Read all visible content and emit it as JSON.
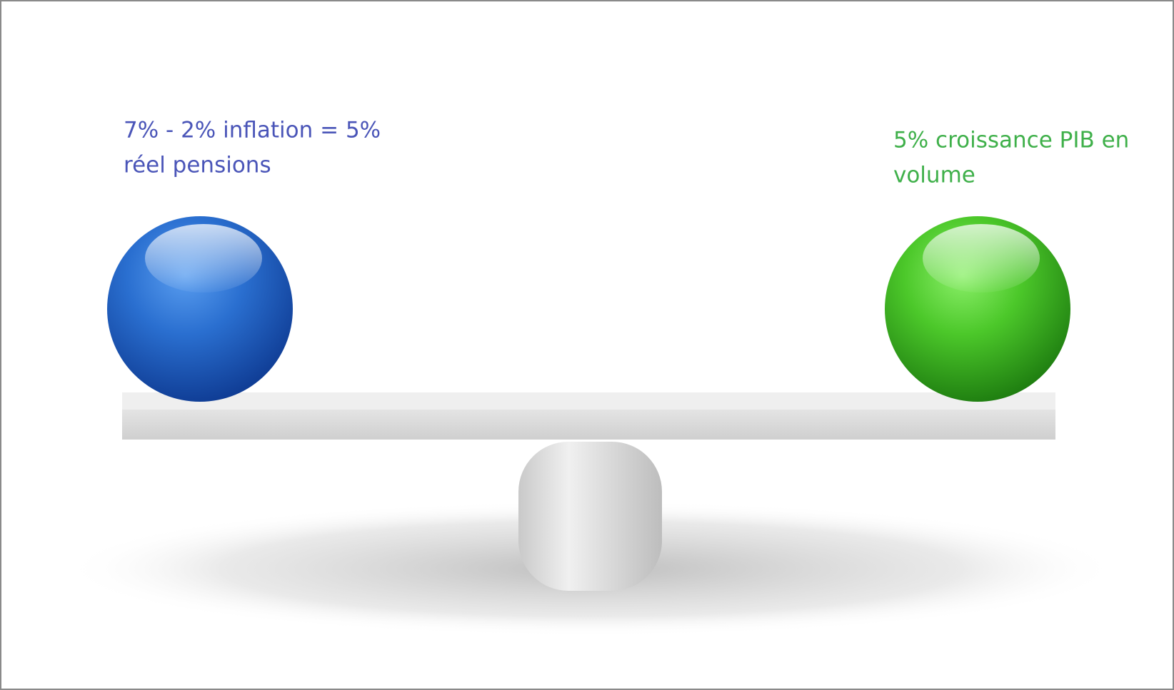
{
  "labels": {
    "left": {
      "lines": [
        "7% - 2% inflation = 5%",
        "réel pensions"
      ]
    },
    "right": {
      "lines": [
        "5% croissance PIB en",
        "volume"
      ]
    }
  }
}
